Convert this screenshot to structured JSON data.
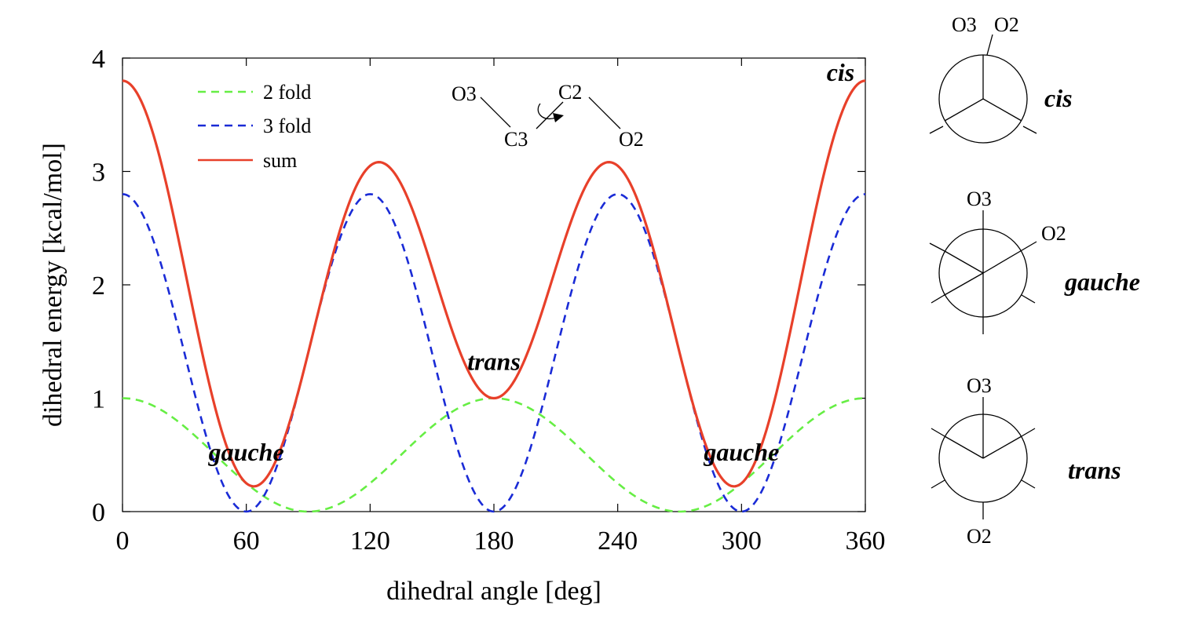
{
  "chart_data": {
    "type": "line",
    "xlabel": "dihedral angle [deg]",
    "ylabel": "dihedral energy [kcal/mol]",
    "xlim": [
      0,
      360
    ],
    "ylim": [
      0,
      4
    ],
    "xticks": [
      0,
      60,
      120,
      180,
      240,
      300,
      360
    ],
    "yticks": [
      0,
      1,
      2,
      3,
      4
    ],
    "grid": false,
    "legend_position": "top-left",
    "series": [
      {
        "name": "2 fold",
        "color": "#66ee44",
        "style": "dashed",
        "formula": "0.5*(1+cos(2x))",
        "amplitude": 1.0,
        "periodicity": 2
      },
      {
        "name": "3 fold",
        "color": "#1a2bd6",
        "style": "dashed",
        "formula": "1.4*(1+cos(3x))",
        "amplitude": 2.8,
        "periodicity": 3
      },
      {
        "name": "sum",
        "color": "#e8402a",
        "style": "solid",
        "formula": "2 fold + 3 fold"
      }
    ],
    "annotations": [
      {
        "text": "cis",
        "x": 348,
        "y": 3.8
      },
      {
        "text": "gauche",
        "x": 60,
        "y": 0.45
      },
      {
        "text": "trans",
        "x": 180,
        "y": 1.25
      },
      {
        "text": "gauche",
        "x": 300,
        "y": 0.45
      }
    ]
  },
  "molecule": {
    "atoms": [
      "O3",
      "C3",
      "C2",
      "O2"
    ]
  },
  "newman": [
    {
      "conformer": "cis",
      "labels": [
        "O3",
        "O2"
      ]
    },
    {
      "conformer": "gauche",
      "labels": [
        "O3",
        "O2"
      ]
    },
    {
      "conformer": "trans",
      "labels": [
        "O3",
        "O2"
      ]
    }
  ]
}
